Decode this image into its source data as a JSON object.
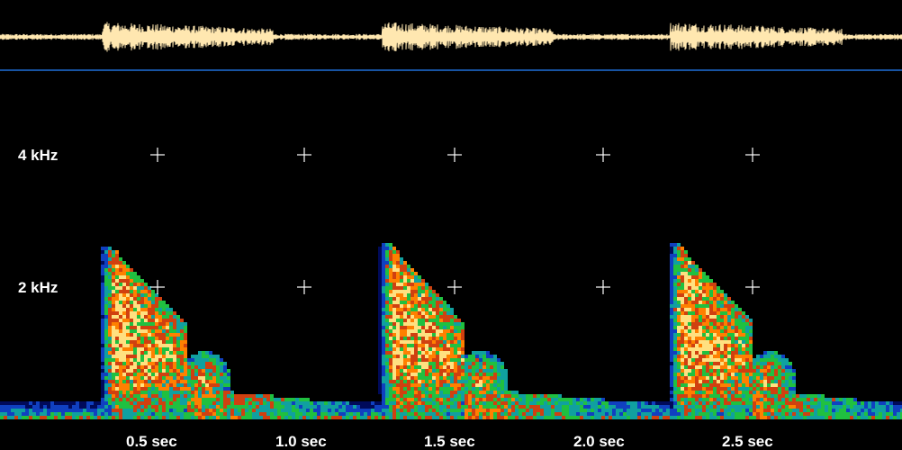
{
  "chart_data": {
    "type": "heatmap",
    "title": "",
    "x_unit": "sec",
    "y_unit": "kHz",
    "x_ticks": [
      {
        "value": 0.5,
        "label": "0.5 sec"
      },
      {
        "value": 1.0,
        "label": "1.0 sec"
      },
      {
        "value": 1.5,
        "label": "1.5 sec"
      },
      {
        "value": 2.0,
        "label": "2.0 sec"
      },
      {
        "value": 2.5,
        "label": "2.5 sec"
      }
    ],
    "y_ticks": [
      {
        "value": 2,
        "label": "2 kHz"
      },
      {
        "value": 4,
        "label": "4 kHz"
      }
    ],
    "grid_markers": "crosses at tick intersections",
    "xlim": [
      0,
      3.0
    ],
    "ylim": [
      0,
      5.8
    ],
    "calls": [
      {
        "onset": 0.36,
        "peak_freq": 2.6,
        "decay_end": 0.62,
        "tail_end": 1.2
      },
      {
        "onset": 1.29,
        "peak_freq": 2.65,
        "decay_end": 1.54,
        "tail_end": 2.2
      },
      {
        "onset": 2.25,
        "peak_freq": 2.65,
        "decay_end": 2.5,
        "tail_end": 3.0
      }
    ],
    "colorscale": [
      "#000a5a",
      "#1040c0",
      "#10a0a0",
      "#20c040",
      "#d04010",
      "#ff8000",
      "#ffe080"
    ],
    "waveform_color": "#ffe7b0",
    "divider_color": "#1f6fd8",
    "cross_color": "#ffffff"
  }
}
